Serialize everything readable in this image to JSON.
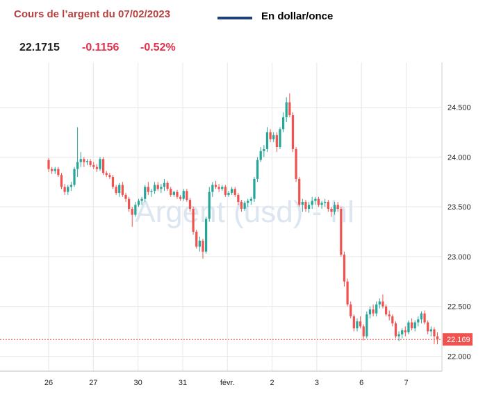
{
  "header": {
    "title": "Cours de l’argent du 07/02/2023",
    "unit_label": "En dollar/once",
    "price": "22.1715",
    "change": "-0.1156",
    "change_pct": "-0.52%"
  },
  "colors": {
    "title": "#b6403f",
    "legend_line": "#1f3f7a",
    "up": "#26a69a",
    "down": "#ef5350",
    "grid": "#e6e6e6",
    "current_price_line": "#ef5350",
    "watermark": "#dce6f1"
  },
  "chart_data": {
    "type": "candlestick",
    "title": "",
    "watermark": "Argent (usd) - hl",
    "ylim": [
      21.85,
      24.95
    ],
    "y_ticks": [
      "24.500",
      "24.000",
      "23.500",
      "23.000",
      "22.500",
      "22.000"
    ],
    "y_tick_values": [
      24.5,
      24.0,
      23.5,
      23.0,
      22.5,
      22.0
    ],
    "x_ticks": [
      "26",
      "27",
      "30",
      "31",
      "févr.",
      "2",
      "3",
      "6",
      "7"
    ],
    "x_tick_positions": [
      0,
      1,
      2,
      3,
      4,
      5,
      6,
      7,
      8
    ],
    "x_domain": [
      0,
      8.8
    ],
    "current_price": 22.169,
    "current_price_label": "22.169",
    "grid": true,
    "ohlc": [
      [
        23.97,
        23.99,
        23.85,
        23.88
      ],
      [
        23.88,
        23.9,
        23.83,
        23.86
      ],
      [
        23.86,
        23.9,
        23.83,
        23.88
      ],
      [
        23.88,
        23.9,
        23.8,
        23.82
      ],
      [
        23.82,
        23.84,
        23.68,
        23.7
      ],
      [
        23.7,
        23.73,
        23.62,
        23.65
      ],
      [
        23.65,
        23.72,
        23.62,
        23.7
      ],
      [
        23.7,
        23.75,
        23.66,
        23.72
      ],
      [
        23.72,
        23.9,
        23.7,
        23.88
      ],
      [
        23.88,
        24.3,
        23.8,
        23.95
      ],
      [
        23.95,
        24.05,
        23.9,
        23.98
      ],
      [
        23.98,
        24.0,
        23.9,
        23.95
      ],
      [
        23.95,
        23.98,
        23.92,
        23.96
      ],
      [
        23.96,
        23.98,
        23.9,
        23.92
      ],
      [
        23.92,
        23.95,
        23.88,
        23.9
      ],
      [
        23.9,
        23.93,
        23.85,
        23.88
      ],
      [
        23.88,
        24.0,
        23.86,
        23.98
      ],
      [
        23.98,
        24.0,
        23.82,
        23.84
      ],
      [
        23.84,
        23.86,
        23.8,
        23.82
      ],
      [
        23.82,
        23.84,
        23.78,
        23.8
      ],
      [
        23.8,
        23.82,
        23.68,
        23.7
      ],
      [
        23.7,
        23.72,
        23.62,
        23.64
      ],
      [
        23.64,
        23.74,
        23.6,
        23.72
      ],
      [
        23.72,
        23.75,
        23.6,
        23.62
      ],
      [
        23.62,
        23.64,
        23.55,
        23.58
      ],
      [
        23.58,
        23.6,
        23.45,
        23.48
      ],
      [
        23.48,
        23.5,
        23.3,
        23.42
      ],
      [
        23.42,
        23.55,
        23.4,
        23.52
      ],
      [
        23.52,
        23.58,
        23.5,
        23.56
      ],
      [
        23.56,
        23.6,
        23.52,
        23.58
      ],
      [
        23.58,
        23.72,
        23.55,
        23.7
      ],
      [
        23.7,
        23.75,
        23.62,
        23.65
      ],
      [
        23.65,
        23.68,
        23.6,
        23.66
      ],
      [
        23.66,
        23.75,
        23.63,
        23.72
      ],
      [
        23.72,
        23.75,
        23.66,
        23.68
      ],
      [
        23.68,
        23.73,
        23.64,
        23.7
      ],
      [
        23.7,
        23.78,
        23.66,
        23.74
      ],
      [
        23.74,
        23.76,
        23.66,
        23.68
      ],
      [
        23.68,
        23.7,
        23.6,
        23.62
      ],
      [
        23.62,
        23.66,
        23.6,
        23.65
      ],
      [
        23.65,
        23.67,
        23.58,
        23.6
      ],
      [
        23.6,
        23.62,
        23.56,
        23.58
      ],
      [
        23.58,
        23.68,
        23.56,
        23.66
      ],
      [
        23.66,
        23.68,
        23.55,
        23.57
      ],
      [
        23.57,
        23.59,
        23.45,
        23.48
      ],
      [
        23.48,
        23.5,
        23.22,
        23.25
      ],
      [
        23.25,
        23.27,
        23.08,
        23.1
      ],
      [
        23.1,
        23.2,
        23.05,
        23.16
      ],
      [
        23.16,
        23.18,
        22.98,
        23.05
      ],
      [
        23.05,
        23.4,
        23.03,
        23.38
      ],
      [
        23.38,
        23.7,
        23.35,
        23.65
      ],
      [
        23.65,
        23.75,
        23.6,
        23.72
      ],
      [
        23.72,
        23.76,
        23.68,
        23.7
      ],
      [
        23.7,
        23.73,
        23.65,
        23.68
      ],
      [
        23.68,
        23.72,
        23.66,
        23.7
      ],
      [
        23.7,
        23.72,
        23.6,
        23.62
      ],
      [
        23.62,
        23.66,
        23.6,
        23.64
      ],
      [
        23.64,
        23.7,
        23.62,
        23.68
      ],
      [
        23.68,
        23.7,
        23.6,
        23.62
      ],
      [
        23.62,
        23.64,
        23.52,
        23.55
      ],
      [
        23.55,
        23.57,
        23.45,
        23.48
      ],
      [
        23.48,
        23.56,
        23.46,
        23.54
      ],
      [
        23.54,
        23.58,
        23.5,
        23.56
      ],
      [
        23.56,
        23.6,
        23.52,
        23.58
      ],
      [
        23.58,
        23.8,
        23.55,
        23.78
      ],
      [
        23.78,
        24.0,
        23.75,
        23.97
      ],
      [
        23.97,
        24.1,
        23.95,
        24.06
      ],
      [
        24.06,
        24.12,
        24.0,
        24.08
      ],
      [
        24.08,
        24.3,
        24.05,
        24.25
      ],
      [
        24.25,
        24.28,
        24.15,
        24.18
      ],
      [
        24.18,
        24.25,
        24.15,
        24.22
      ],
      [
        24.22,
        24.25,
        24.05,
        24.1
      ],
      [
        24.1,
        24.3,
        24.08,
        24.28
      ],
      [
        24.28,
        24.45,
        24.25,
        24.4
      ],
      [
        24.4,
        24.6,
        24.35,
        24.55
      ],
      [
        24.55,
        24.64,
        24.4,
        24.42
      ],
      [
        24.42,
        24.45,
        24.05,
        24.08
      ],
      [
        24.08,
        24.1,
        23.75,
        23.78
      ],
      [
        23.78,
        23.8,
        23.5,
        23.52
      ],
      [
        23.52,
        23.58,
        23.45,
        23.55
      ],
      [
        23.55,
        23.57,
        23.45,
        23.48
      ],
      [
        23.48,
        23.55,
        23.44,
        23.52
      ],
      [
        23.52,
        23.6,
        23.48,
        23.56
      ],
      [
        23.56,
        23.6,
        23.52,
        23.58
      ],
      [
        23.58,
        23.6,
        23.5,
        23.52
      ],
      [
        23.52,
        23.56,
        23.48,
        23.54
      ],
      [
        23.54,
        23.58,
        23.5,
        23.55
      ],
      [
        23.55,
        23.57,
        23.45,
        23.48
      ],
      [
        23.48,
        23.5,
        23.4,
        23.45
      ],
      [
        23.45,
        23.55,
        23.42,
        23.52
      ],
      [
        23.52,
        23.55,
        23.45,
        23.48
      ],
      [
        23.48,
        23.5,
        23.0,
        23.02
      ],
      [
        23.02,
        23.05,
        22.7,
        22.75
      ],
      [
        22.75,
        22.78,
        22.5,
        22.52
      ],
      [
        22.52,
        22.55,
        22.38,
        22.4
      ],
      [
        22.4,
        22.42,
        22.25,
        22.28
      ],
      [
        22.28,
        22.38,
        22.25,
        22.35
      ],
      [
        22.35,
        22.4,
        22.28,
        22.3
      ],
      [
        22.3,
        22.32,
        22.16,
        22.2
      ],
      [
        22.2,
        22.45,
        22.18,
        22.42
      ],
      [
        22.42,
        22.5,
        22.38,
        22.47
      ],
      [
        22.47,
        22.52,
        22.4,
        22.43
      ],
      [
        22.43,
        22.55,
        22.4,
        22.52
      ],
      [
        22.52,
        22.58,
        22.48,
        22.55
      ],
      [
        22.55,
        22.62,
        22.48,
        22.5
      ],
      [
        22.5,
        22.52,
        22.4,
        22.42
      ],
      [
        22.42,
        22.46,
        22.36,
        22.4
      ],
      [
        22.4,
        22.42,
        22.3,
        22.33
      ],
      [
        22.33,
        22.35,
        22.18,
        22.2
      ],
      [
        22.2,
        22.25,
        22.15,
        22.22
      ],
      [
        22.22,
        22.28,
        22.18,
        22.26
      ],
      [
        22.26,
        22.3,
        22.2,
        22.24
      ],
      [
        22.24,
        22.36,
        22.22,
        22.34
      ],
      [
        22.34,
        22.38,
        22.26,
        22.28
      ],
      [
        22.28,
        22.36,
        22.25,
        22.34
      ],
      [
        22.34,
        22.4,
        22.3,
        22.37
      ],
      [
        22.37,
        22.45,
        22.33,
        22.43
      ],
      [
        22.43,
        22.46,
        22.32,
        22.34
      ],
      [
        22.34,
        22.36,
        22.22,
        22.25
      ],
      [
        22.25,
        22.3,
        22.2,
        22.27
      ],
      [
        22.27,
        22.29,
        22.12,
        22.2
      ],
      [
        22.2,
        22.24,
        22.12,
        22.17
      ]
    ]
  }
}
